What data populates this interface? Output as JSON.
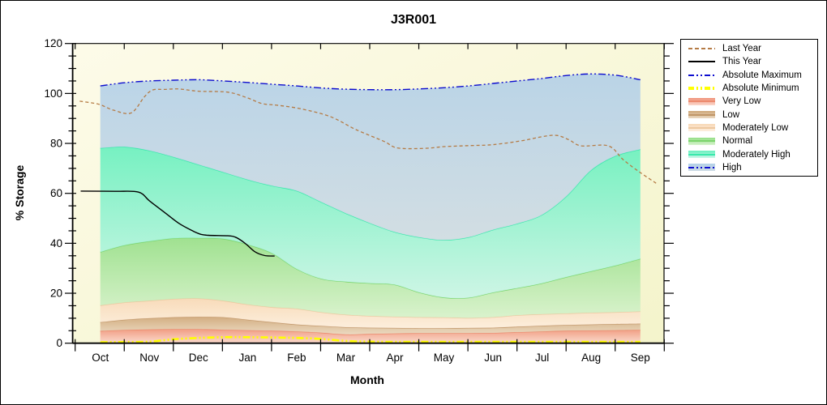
{
  "title": "J3R001",
  "x_axis": {
    "label": "Month",
    "tick_labels": [
      "Oct",
      "Nov",
      "Dec",
      "Jan",
      "Feb",
      "Mar",
      "Apr",
      "May",
      "Jun",
      "Jul",
      "Aug",
      "Sep"
    ]
  },
  "y_axis": {
    "label": "% Storage",
    "min": 0,
    "max": 120,
    "major_step": 20,
    "minor_step": 5,
    "tick_labels": [
      "0",
      "20",
      "40",
      "60",
      "80",
      "100",
      "120"
    ]
  },
  "colors": {
    "plot_bg_light": "#fdfbe9",
    "plot_bg_dark": "#f4f4cb",
    "axis": "#000000"
  },
  "chart_data": {
    "type": "area",
    "title": "J3R001",
    "xlabel": "Month",
    "ylabel": "% Storage",
    "ylim": [
      0,
      120
    ],
    "x_note": "x in month units: 0 = Oct tick label position, 11 = Sep; bands sampled every half month",
    "band_x": [
      0,
      0.5,
      1,
      1.5,
      2,
      2.5,
      3,
      3.5,
      4,
      4.5,
      5,
      5.5,
      6,
      6.5,
      7,
      7.5,
      8,
      8.5,
      9,
      9.5,
      10,
      10.5,
      11
    ],
    "bands": [
      {
        "name": "Very Low",
        "fill_top": "#f0937a",
        "fill_bottom": "#fbd8cc",
        "edge": "#ec8a6d",
        "top": [
          4.9,
          5.3,
          5.5,
          5.6,
          5.6,
          5.4,
          5.2,
          5.0,
          4.7,
          4.2,
          3.5,
          3.7,
          3.9,
          4.0,
          4.0,
          4.0,
          4.1,
          4.4,
          4.7,
          5.0,
          5.1,
          5.2,
          5.3
        ]
      },
      {
        "name": "Low",
        "fill_top": "#cfa678",
        "fill_bottom": "#ead7c0",
        "edge": "#c09668",
        "top": [
          8.4,
          9.4,
          10.0,
          10.4,
          10.5,
          10.4,
          9.4,
          8.4,
          7.5,
          6.9,
          6.4,
          6.2,
          6.1,
          6.0,
          6.0,
          6.1,
          6.2,
          6.6,
          7.0,
          7.3,
          7.5,
          7.7,
          7.8
        ]
      },
      {
        "name": "Moderately Low",
        "fill_top": "#f8d8b6",
        "fill_bottom": "#fdeede",
        "edge": "#eec8a0",
        "top": [
          15.1,
          16.3,
          17.0,
          17.7,
          17.9,
          17.0,
          15.5,
          14.4,
          13.8,
          12.4,
          11.4,
          10.9,
          10.6,
          10.4,
          10.3,
          10.1,
          10.4,
          11.2,
          11.6,
          11.9,
          12.2,
          12.4,
          12.7
        ]
      },
      {
        "name": "Normal",
        "fill_top": "#96df88",
        "fill_bottom": "#d6f2cc",
        "edge": "#7cd46c",
        "top": [
          36.5,
          39.2,
          40.8,
          42.0,
          42.1,
          41.8,
          39.5,
          36.0,
          29.7,
          25.8,
          24.6,
          24.0,
          23.4,
          20.3,
          18.3,
          18.2,
          20.3,
          22.1,
          24.0,
          26.5,
          28.8,
          31.1,
          33.8
        ]
      },
      {
        "name": "Moderately High",
        "fill_top": "#68f0be",
        "fill_bottom": "#c9f5e7",
        "edge": "#3ae9ac",
        "top": [
          78.1,
          78.6,
          77.1,
          74.5,
          71.5,
          68.5,
          65.5,
          63.0,
          61.0,
          56.5,
          52.0,
          48.0,
          44.5,
          42.4,
          41.3,
          42.4,
          45.4,
          47.9,
          51.4,
          58.9,
          69.3,
          75.0,
          77.6
        ]
      },
      {
        "name": "High",
        "fill_top": "#b3d0e8",
        "fill_bottom": "#cedbe4",
        "edge": null,
        "top": [
          103.0,
          104.3,
          105.0,
          105.3,
          105.5,
          105.0,
          104.4,
          103.7,
          103.0,
          102.2,
          101.7,
          101.5,
          101.5,
          101.8,
          102.3,
          103.0,
          104.0,
          105.0,
          106.0,
          107.2,
          107.8,
          107.3,
          105.5
        ]
      }
    ],
    "lines": [
      {
        "name": "Absolute Maximum",
        "color": "#0d0dcf",
        "dash": "9 3 2 3 2 3",
        "width": 1.4,
        "x": [
          0,
          0.5,
          1,
          1.5,
          2,
          2.5,
          3,
          3.5,
          4,
          4.5,
          5,
          5.5,
          6,
          6.5,
          7,
          7.5,
          8,
          8.5,
          9,
          9.5,
          10,
          10.5,
          11
        ],
        "y": [
          103.0,
          104.3,
          105.0,
          105.3,
          105.5,
          105.0,
          104.4,
          103.7,
          103.0,
          102.2,
          101.7,
          101.5,
          101.5,
          101.8,
          102.3,
          103.0,
          104.0,
          105.0,
          106.0,
          107.2,
          107.8,
          107.3,
          105.5
        ]
      },
      {
        "name": "Absolute Minimum",
        "color": "#ffff00",
        "dash": "9 3 2 3 2 3",
        "width": 2.6,
        "x": [
          0,
          0.5,
          1,
          1.5,
          2,
          2.5,
          3,
          3.5,
          4,
          4.5,
          5,
          5.5,
          6,
          6.5,
          7,
          7.5,
          8,
          8.5,
          9,
          9.5,
          10,
          10.5,
          11
        ],
        "y": [
          0.4,
          0.5,
          0.6,
          1.6,
          2.1,
          2.4,
          2.4,
          2.3,
          2.1,
          1.7,
          0.9,
          0.6,
          0.55,
          0.55,
          0.55,
          0.55,
          0.55,
          0.55,
          0.55,
          0.55,
          0.55,
          0.55,
          0.55
        ]
      },
      {
        "name": "Last Year",
        "color": "#b57b45",
        "dash": "4 3",
        "width": 1.3,
        "x": [
          -0.42,
          -0.2,
          0,
          0.27,
          0.63,
          0.9,
          1.07,
          1.3,
          1.6,
          2,
          2.6,
          3,
          3.3,
          3.6,
          4.1,
          4.7,
          5.2,
          5.77,
          6.05,
          6.6,
          7,
          7.5,
          8,
          8.6,
          9,
          9.3,
          9.55,
          9.8,
          10.35,
          10.65,
          11,
          11.35
        ],
        "y": [
          96.9,
          96.3,
          95.5,
          93.3,
          92.2,
          98.7,
          101.4,
          101.6,
          101.8,
          100.9,
          100.5,
          98.2,
          95.9,
          95.3,
          93.8,
          90.6,
          85.6,
          80.9,
          78.2,
          78.0,
          78.7,
          79.1,
          79.5,
          81.1,
          82.7,
          83.2,
          81.4,
          79.0,
          79.0,
          73.5,
          68.3,
          63.7
        ]
      },
      {
        "name": "This Year",
        "color": "#000000",
        "dash": null,
        "width": 1.4,
        "x": [
          -0.4,
          0.3,
          0.78,
          1.0,
          1.3,
          1.6,
          1.9,
          2.05,
          2.2,
          2.6,
          2.75,
          2.95,
          3.15,
          3.35,
          3.55
        ],
        "y": [
          60.9,
          60.8,
          60.5,
          57.0,
          52.5,
          48.0,
          44.8,
          43.6,
          43.2,
          43.0,
          42.5,
          40.0,
          36.6,
          35.1,
          34.9
        ]
      }
    ],
    "legend": {
      "position": "top-right, outside plot",
      "items": [
        {
          "label": "Last Year",
          "swatch": "line",
          "pattern": "dashed",
          "color": "#b57b45"
        },
        {
          "label": "This Year",
          "swatch": "line",
          "pattern": "solid",
          "color": "#000000"
        },
        {
          "label": "Absolute Maximum",
          "swatch": "line",
          "pattern": "dashdot",
          "color": "#0d0dcf"
        },
        {
          "label": "Absolute Minimum",
          "swatch": "line",
          "pattern": "dashdot",
          "color": "#ffff00",
          "thick": true
        },
        {
          "label": "Very Low",
          "swatch": "band",
          "fill_top": "#f0937a",
          "fill_bottom": "#fbd8cc",
          "line_color": "#ec8a6d",
          "line_pattern": "solid"
        },
        {
          "label": "Low",
          "swatch": "band",
          "fill_top": "#cfa678",
          "fill_bottom": "#ead7c0",
          "line_color": "#c09668",
          "line_pattern": "solid"
        },
        {
          "label": "Moderately Low",
          "swatch": "band",
          "fill_top": "#f8d8b6",
          "fill_bottom": "#fdeede",
          "line_color": "#eec8a0",
          "line_pattern": "solid"
        },
        {
          "label": "Normal",
          "swatch": "band",
          "fill_top": "#96df88",
          "fill_bottom": "#d6f2cc",
          "line_color": "#7cd46c",
          "line_pattern": "solid"
        },
        {
          "label": "Moderately High",
          "swatch": "band",
          "fill_top": "#68f0be",
          "fill_bottom": "#c9f5e7",
          "line_color": "#3ae9ac",
          "line_pattern": "solid"
        },
        {
          "label": "High",
          "swatch": "band",
          "fill_top": "#b3d0e8",
          "fill_bottom": "#cedbe4",
          "line_color": "#0d0dcf",
          "line_pattern": "dashdot"
        }
      ]
    }
  }
}
